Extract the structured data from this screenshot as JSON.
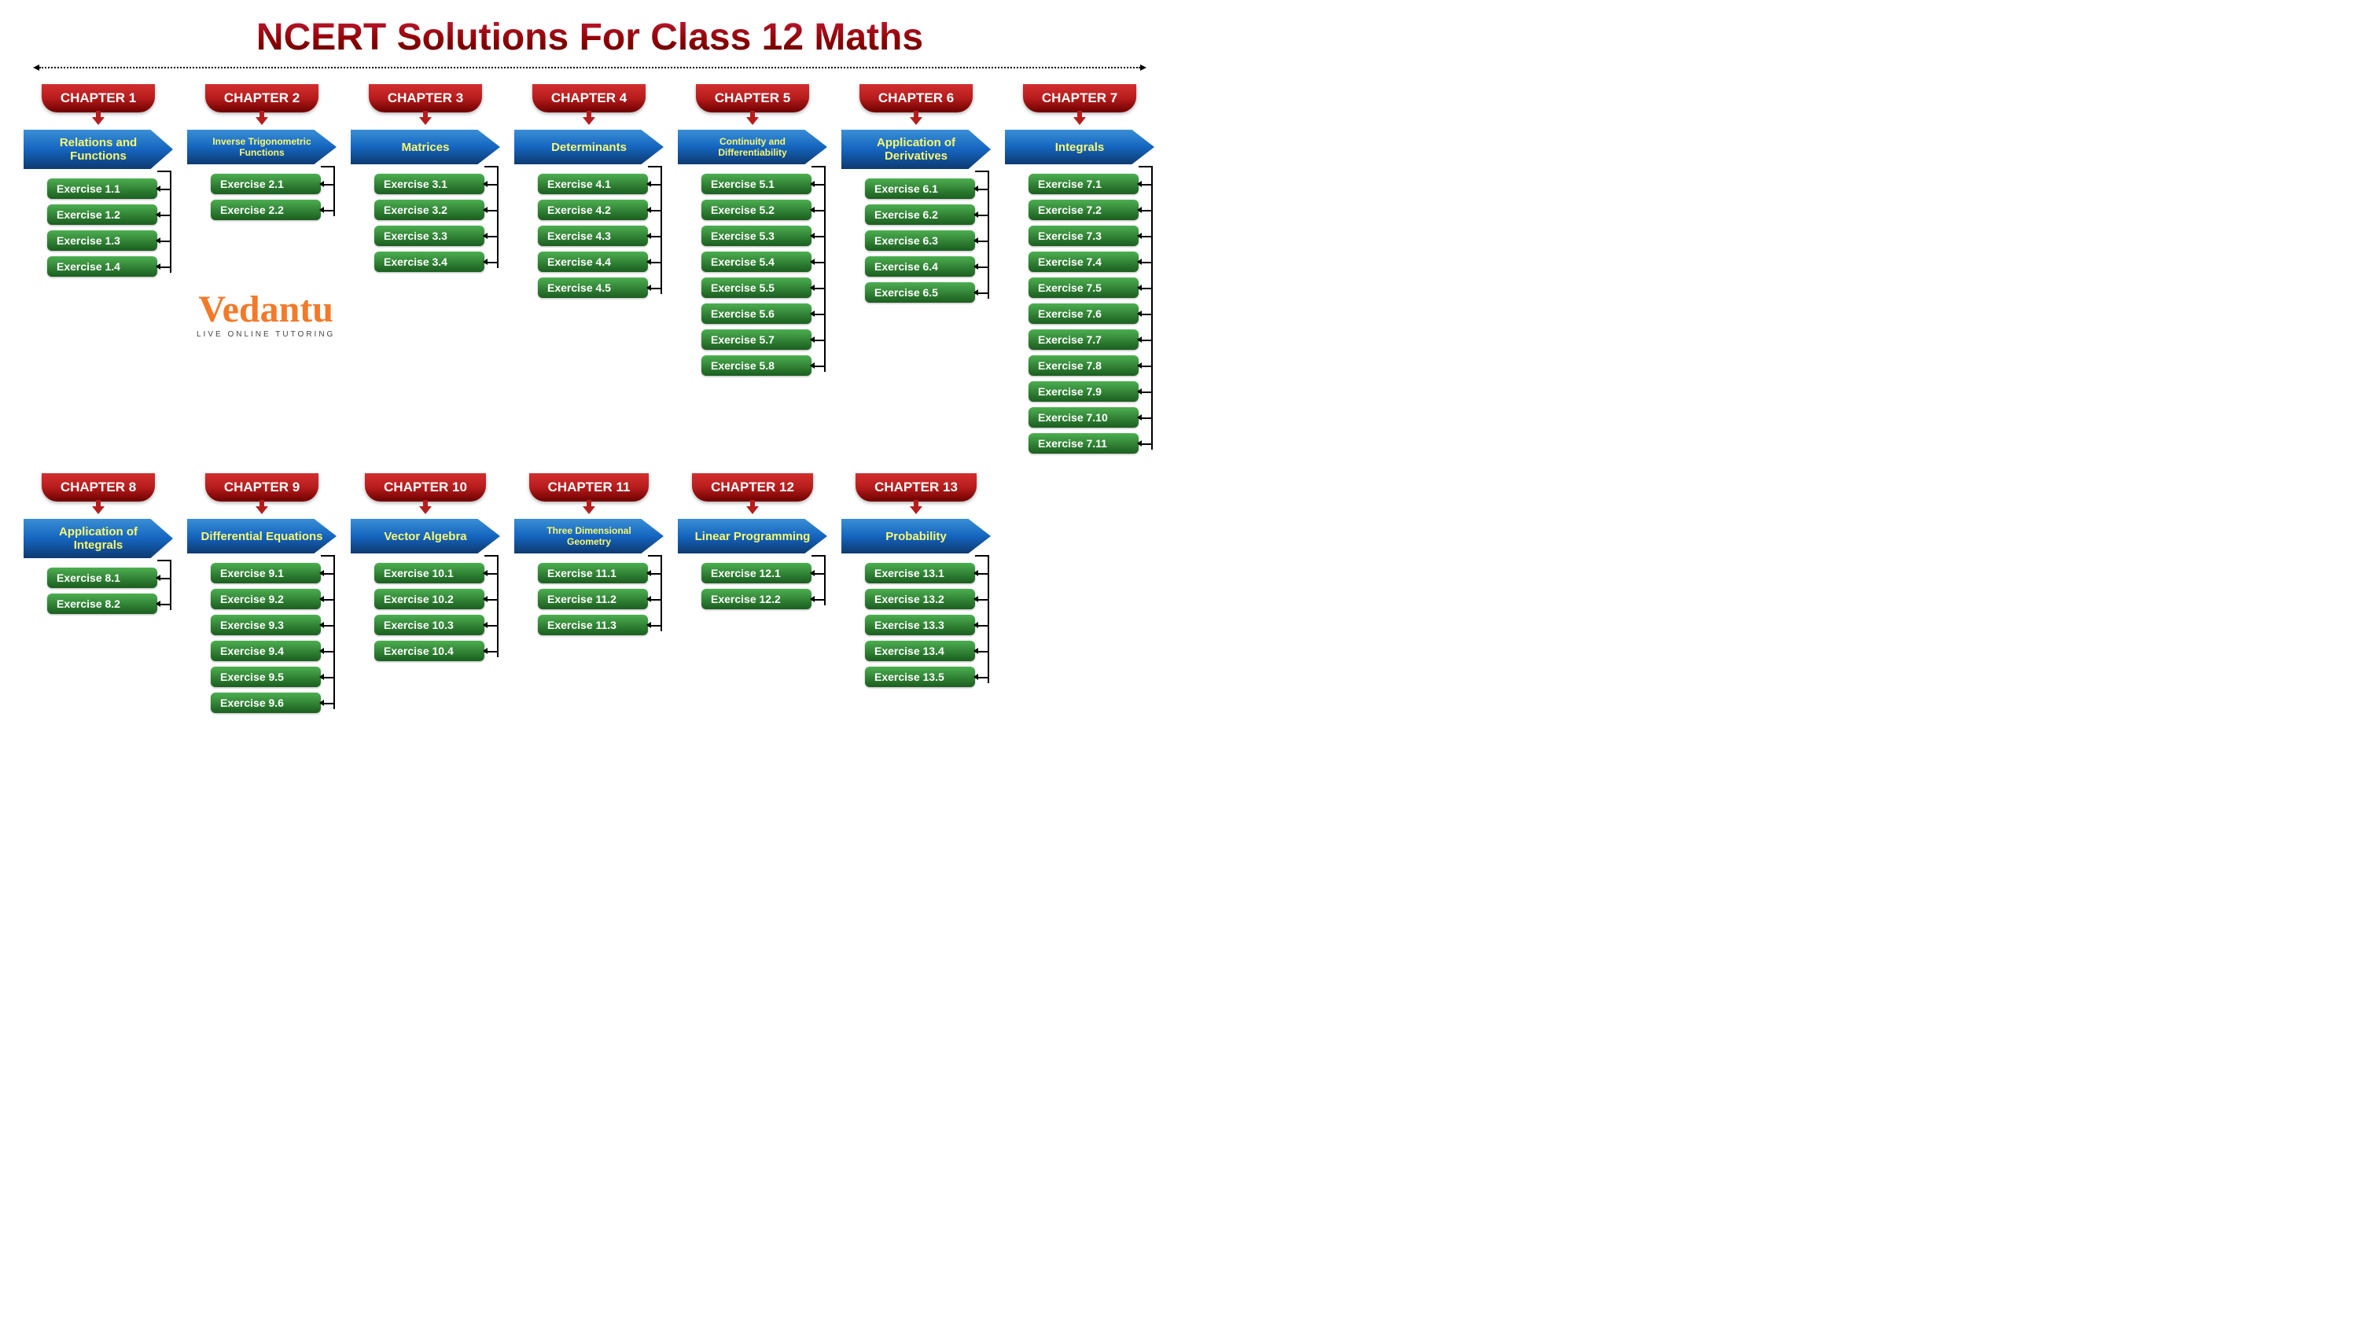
{
  "title": "NCERT Solutions For Class 12 Maths",
  "logo": {
    "name": "Vedantu",
    "tagline": "LIVE ONLINE TUTORING"
  },
  "colors": {
    "title_top": "#c41e3a",
    "title_bottom": "#5a0000",
    "badge_top": "#d32f2f",
    "badge_bottom": "#6d0000",
    "topic_top": "#3a8fd4",
    "topic_bottom": "#0d3a70",
    "topic_text": "#f9f871",
    "exercise_top": "#4caf50",
    "exercise_bottom": "#1b5e20",
    "logo_color": "#f47929",
    "connector": "#000000",
    "background": "#ffffff"
  },
  "typography": {
    "title_size": 48,
    "title_weight": 900,
    "badge_size": 17,
    "badge_weight": 900,
    "topic_size": 15,
    "topic_weight": 800,
    "exercise_size": 14,
    "exercise_weight": 700
  },
  "chapters": [
    {
      "badge": "CHAPTER 1",
      "topic": "Relations and Functions",
      "exercises": [
        "Exercise 1.1",
        "Exercise 1.2",
        "Exercise 1.3",
        "Exercise 1.4"
      ]
    },
    {
      "badge": "CHAPTER 2",
      "topic": "Inverse Trigonometric Functions",
      "small": true,
      "exercises": [
        "Exercise 2.1",
        "Exercise 2.2"
      ]
    },
    {
      "badge": "CHAPTER 3",
      "topic": "Matrices",
      "exercises": [
        "Exercise 3.1",
        "Exercise 3.2",
        "Exercise 3.3",
        "Exercise 3.4"
      ]
    },
    {
      "badge": "CHAPTER 4",
      "topic": "Determinants",
      "exercises": [
        "Exercise 4.1",
        "Exercise 4.2",
        "Exercise 4.3",
        "Exercise 4.4",
        "Exercise 4.5"
      ]
    },
    {
      "badge": "CHAPTER 5",
      "topic": "Continuity and Differentiability",
      "small": true,
      "exercises": [
        "Exercise 5.1",
        "Exercise 5.2",
        "Exercise 5.3",
        "Exercise 5.4",
        "Exercise 5.5",
        "Exercise 5.6",
        "Exercise 5.7",
        "Exercise 5.8"
      ]
    },
    {
      "badge": "CHAPTER 6",
      "topic": "Application of Derivatives",
      "exercises": [
        "Exercise 6.1",
        "Exercise 6.2",
        "Exercise 6.3",
        "Exercise 6.4",
        "Exercise 6.5"
      ]
    },
    {
      "badge": "CHAPTER 7",
      "topic": "Integrals",
      "exercises": [
        "Exercise 7.1",
        "Exercise 7.2",
        "Exercise 7.3",
        "Exercise 7.4",
        "Exercise 7.5",
        "Exercise 7.6",
        "Exercise 7.7",
        "Exercise 7.8",
        "Exercise 7.9",
        "Exercise 7.10",
        "Exercise 7.11"
      ]
    },
    {
      "badge": "CHAPTER 8",
      "topic": "Application of Integrals",
      "exercises": [
        "Exercise 8.1",
        "Exercise 8.2"
      ]
    },
    {
      "badge": "CHAPTER 9",
      "topic": "Differential Equations",
      "exercises": [
        "Exercise 9.1",
        "Exercise 9.2",
        "Exercise 9.3",
        "Exercise 9.4",
        "Exercise 9.5",
        "Exercise 9.6"
      ]
    },
    {
      "badge": "CHAPTER 10",
      "topic": "Vector Algebra",
      "exercises": [
        "Exercise 10.1",
        "Exercise 10.2",
        "Exercise 10.3",
        "Exercise 10.4"
      ]
    },
    {
      "badge": "CHAPTER 11",
      "topic": "Three Dimensional Geometry",
      "small": true,
      "exercises": [
        "Exercise 11.1",
        "Exercise 11.2",
        "Exercise 11.3"
      ]
    },
    {
      "badge": "CHAPTER 12",
      "topic": "Linear Programming",
      "exercises": [
        "Exercise 12.1",
        "Exercise 12.2"
      ]
    },
    {
      "badge": "CHAPTER 13",
      "topic": "Probability",
      "exercises": [
        "Exercise 13.1",
        "Exercise 13.2",
        "Exercise 13.3",
        "Exercise 13.4",
        "Exercise 13.5"
      ]
    }
  ]
}
